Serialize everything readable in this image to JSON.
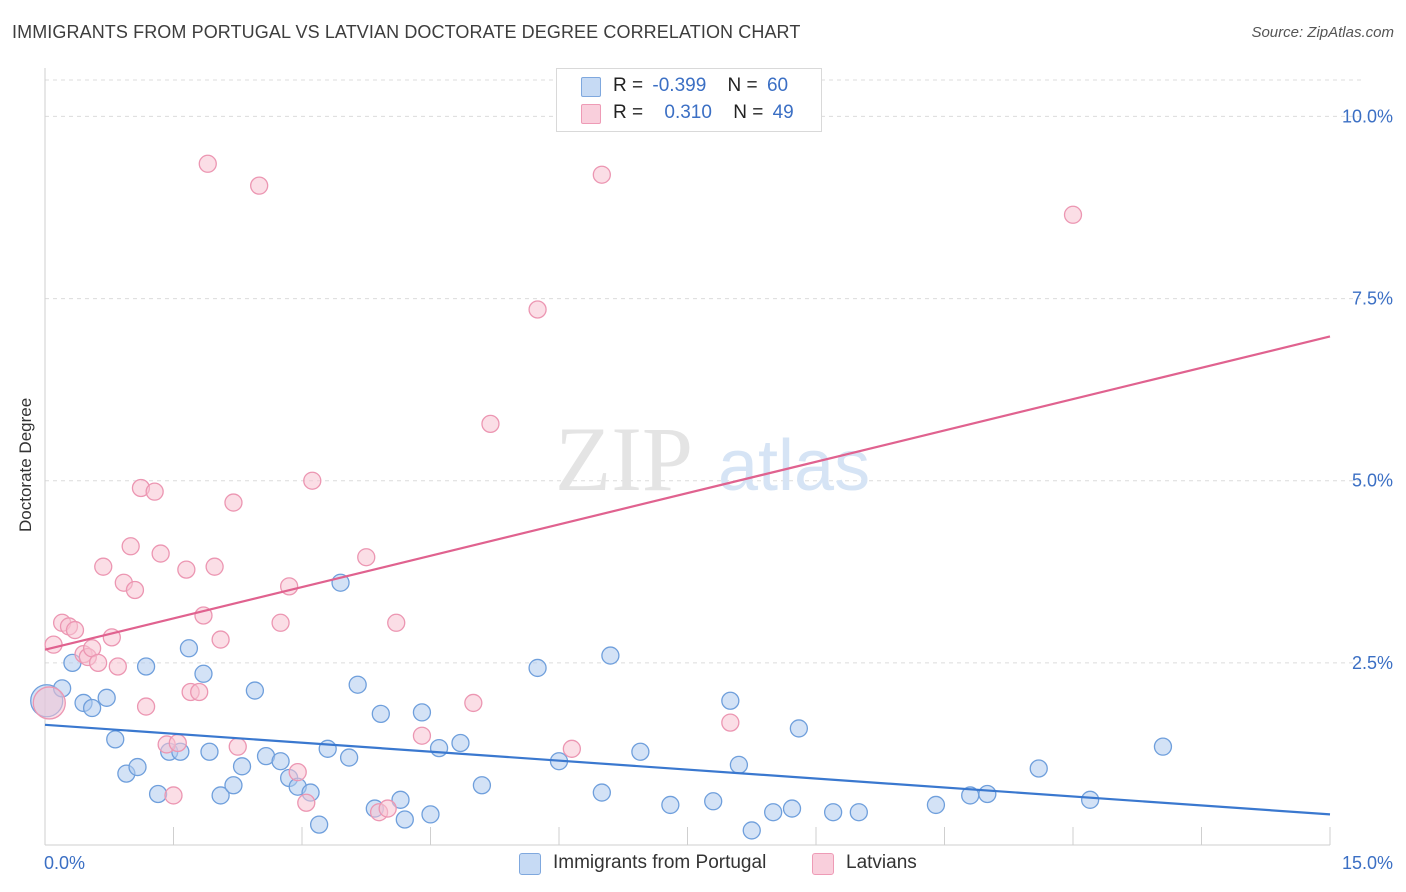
{
  "title": "IMMIGRANTS FROM PORTUGAL VS LATVIAN DOCTORATE DEGREE CORRELATION CHART",
  "source": "Source: ZipAtlas.com",
  "watermark": {
    "zip": "ZIP",
    "atlas": "atlas"
  },
  "legend_top": {
    "rows": [
      {
        "r_label": "R =",
        "r_value": "-0.399",
        "n_label": "N =",
        "n_value": "60"
      },
      {
        "r_label": "R =",
        "r_value": "0.310",
        "n_label": "N =",
        "n_value": "49"
      }
    ]
  },
  "legend_bottom": {
    "series1": "Immigrants from Portugal",
    "series2": "Latvians"
  },
  "colors": {
    "blue_fill": "#aecbee",
    "blue_stroke": "#6f9fdc",
    "blue_line": "#3a78cf",
    "pink_fill": "#f7c2d2",
    "pink_stroke": "#ec96b2",
    "pink_line": "#e0628f",
    "axis_text": "#3b6fc4",
    "grid": "#dcdcdc"
  },
  "chart_data": {
    "type": "scatter",
    "title": "IMMIGRANTS FROM PORTUGAL VS LATVIAN DOCTORATE DEGREE CORRELATION CHART",
    "xlabel": "",
    "ylabel": "Doctorate Degree",
    "xlim": [
      0,
      15
    ],
    "ylim": [
      0,
      10.5
    ],
    "x_tick_labels": [
      "0.0%",
      "15.0%"
    ],
    "y_ticks": [
      2.5,
      5.0,
      7.5,
      10.0
    ],
    "y_tick_labels": [
      "2.5%",
      "5.0%",
      "7.5%",
      "10.0%"
    ],
    "grid": true,
    "series": [
      {
        "name": "Immigrants from Portugal",
        "color": "blue",
        "points": [
          [
            0.02,
            1.98
          ],
          [
            0.2,
            2.15
          ],
          [
            0.32,
            2.5
          ],
          [
            0.45,
            1.95
          ],
          [
            0.55,
            1.88
          ],
          [
            0.72,
            2.02
          ],
          [
            0.82,
            1.45
          ],
          [
            0.95,
            0.98
          ],
          [
            1.08,
            1.07
          ],
          [
            1.18,
            2.45
          ],
          [
            1.32,
            0.7
          ],
          [
            1.45,
            1.28
          ],
          [
            1.58,
            1.28
          ],
          [
            1.68,
            2.7
          ],
          [
            1.85,
            2.35
          ],
          [
            1.92,
            1.28
          ],
          [
            2.05,
            0.68
          ],
          [
            2.2,
            0.82
          ],
          [
            2.3,
            1.08
          ],
          [
            2.45,
            2.12
          ],
          [
            2.58,
            1.22
          ],
          [
            2.75,
            1.15
          ],
          [
            2.85,
            0.92
          ],
          [
            2.95,
            0.8
          ],
          [
            3.1,
            0.72
          ],
          [
            3.2,
            0.28
          ],
          [
            3.3,
            1.32
          ],
          [
            3.45,
            3.6
          ],
          [
            3.55,
            1.2
          ],
          [
            3.65,
            2.2
          ],
          [
            3.85,
            0.5
          ],
          [
            3.92,
            1.8
          ],
          [
            4.15,
            0.62
          ],
          [
            4.2,
            0.35
          ],
          [
            4.4,
            1.82
          ],
          [
            4.5,
            0.42
          ],
          [
            4.6,
            1.33
          ],
          [
            4.85,
            1.4
          ],
          [
            5.1,
            0.82
          ],
          [
            5.75,
            2.43
          ],
          [
            6.0,
            1.15
          ],
          [
            6.5,
            0.72
          ],
          [
            6.6,
            2.6
          ],
          [
            6.95,
            1.28
          ],
          [
            7.3,
            0.55
          ],
          [
            7.8,
            0.6
          ],
          [
            8.0,
            1.98
          ],
          [
            8.1,
            1.1
          ],
          [
            8.25,
            0.2
          ],
          [
            8.5,
            0.45
          ],
          [
            8.72,
            0.5
          ],
          [
            8.8,
            1.6
          ],
          [
            9.2,
            0.45
          ],
          [
            9.5,
            0.45
          ],
          [
            10.4,
            0.55
          ],
          [
            10.8,
            0.68
          ],
          [
            11.0,
            0.7
          ],
          [
            11.6,
            1.05
          ],
          [
            12.2,
            0.62
          ],
          [
            13.05,
            1.35
          ]
        ],
        "trend": {
          "x": [
            0,
            15
          ],
          "y": [
            1.65,
            0.42
          ]
        }
      },
      {
        "name": "Latvians",
        "color": "pink",
        "points": [
          [
            0.05,
            1.95
          ],
          [
            0.1,
            2.75
          ],
          [
            0.2,
            3.05
          ],
          [
            0.28,
            3.0
          ],
          [
            0.35,
            2.95
          ],
          [
            0.45,
            2.62
          ],
          [
            0.5,
            2.58
          ],
          [
            0.55,
            2.7
          ],
          [
            0.62,
            2.5
          ],
          [
            0.68,
            3.82
          ],
          [
            0.78,
            2.85
          ],
          [
            0.85,
            2.45
          ],
          [
            0.92,
            3.6
          ],
          [
            1.0,
            4.1
          ],
          [
            1.05,
            3.5
          ],
          [
            1.12,
            4.9
          ],
          [
            1.18,
            1.9
          ],
          [
            1.28,
            4.85
          ],
          [
            1.35,
            4.0
          ],
          [
            1.42,
            1.38
          ],
          [
            1.5,
            0.68
          ],
          [
            1.55,
            1.4
          ],
          [
            1.65,
            3.78
          ],
          [
            1.7,
            2.1
          ],
          [
            1.8,
            2.1
          ],
          [
            1.85,
            3.15
          ],
          [
            1.9,
            9.35
          ],
          [
            1.98,
            3.82
          ],
          [
            2.05,
            2.82
          ],
          [
            2.2,
            4.7
          ],
          [
            2.25,
            1.35
          ],
          [
            2.5,
            9.05
          ],
          [
            2.75,
            3.05
          ],
          [
            2.85,
            3.55
          ],
          [
            2.95,
            1.0
          ],
          [
            3.05,
            0.58
          ],
          [
            3.12,
            5.0
          ],
          [
            3.75,
            3.95
          ],
          [
            3.9,
            0.45
          ],
          [
            4.0,
            0.5
          ],
          [
            4.1,
            3.05
          ],
          [
            4.4,
            1.5
          ],
          [
            5.0,
            1.95
          ],
          [
            5.2,
            5.78
          ],
          [
            5.75,
            7.35
          ],
          [
            6.15,
            1.32
          ],
          [
            6.5,
            9.2
          ],
          [
            8.0,
            1.68
          ],
          [
            12.0,
            8.65
          ]
        ],
        "trend": {
          "x": [
            0,
            15
          ],
          "y": [
            2.68,
            6.98
          ]
        }
      }
    ]
  }
}
